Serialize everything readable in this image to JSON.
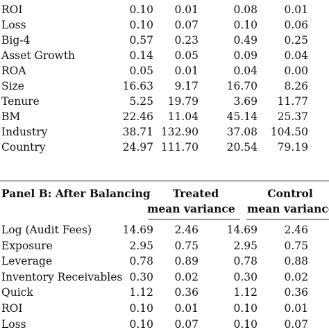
{
  "panel_a": {
    "rows": [
      {
        "label": "ROI",
        "values": [
          "0.10",
          "0.01",
          "0.08",
          "0.01"
        ]
      },
      {
        "label": "Loss",
        "values": [
          "0.10",
          "0.07",
          "0.10",
          "0.06"
        ]
      },
      {
        "label": "Big-4",
        "values": [
          "0.57",
          "0.23",
          "0.49",
          "0.25"
        ]
      },
      {
        "label": "Asset Growth",
        "values": [
          "0.14",
          "0.05",
          "0.09",
          "0.04"
        ]
      },
      {
        "label": "ROA",
        "values": [
          "0.05",
          "0.01",
          "0.04",
          "0.00"
        ]
      },
      {
        "label": "Size",
        "values": [
          "16.63",
          "9.17",
          "16.70",
          "8.26"
        ]
      },
      {
        "label": "Tenure",
        "values": [
          "5.25",
          "19.79",
          "3.69",
          "11.77"
        ]
      },
      {
        "label": "BM",
        "values": [
          "22.46",
          "11.04",
          "45.14",
          "25.37"
        ]
      },
      {
        "label": "Industry",
        "values": [
          "38.71",
          "132.90",
          "37.08",
          "104.50"
        ]
      },
      {
        "label": "Country",
        "values": [
          "24.97",
          "111.70",
          "20.54",
          "79.19"
        ]
      }
    ]
  },
  "panel_b": {
    "title": "Panel B: After Balancing",
    "treated_label": "Treated",
    "control_label": "Control",
    "treated_sub": "mean variance",
    "control_sub": "mean variance",
    "rows": [
      {
        "label": "Log (Audit Fees)",
        "values": [
          "14.69",
          "2.46",
          "14.69",
          "2.46"
        ]
      },
      {
        "label": "Exposure",
        "values": [
          "2.95",
          "0.75",
          "2.95",
          "0.75"
        ]
      },
      {
        "label": "Leverage",
        "values": [
          "0.78",
          "0.89",
          "0.78",
          "0.88"
        ]
      },
      {
        "label": "Inventory Receivables",
        "values": [
          "0.30",
          "0.02",
          "0.30",
          "0.02"
        ]
      },
      {
        "label": "Quick",
        "values": [
          "1.12",
          "0.36",
          "1.12",
          "0.36"
        ]
      },
      {
        "label": "ROI",
        "values": [
          "0.10",
          "0.01",
          "0.10",
          "0.01"
        ]
      },
      {
        "label": "Loss",
        "values": [
          "0.10",
          "0.07",
          "0.10",
          "0.07"
        ]
      }
    ]
  }
}
